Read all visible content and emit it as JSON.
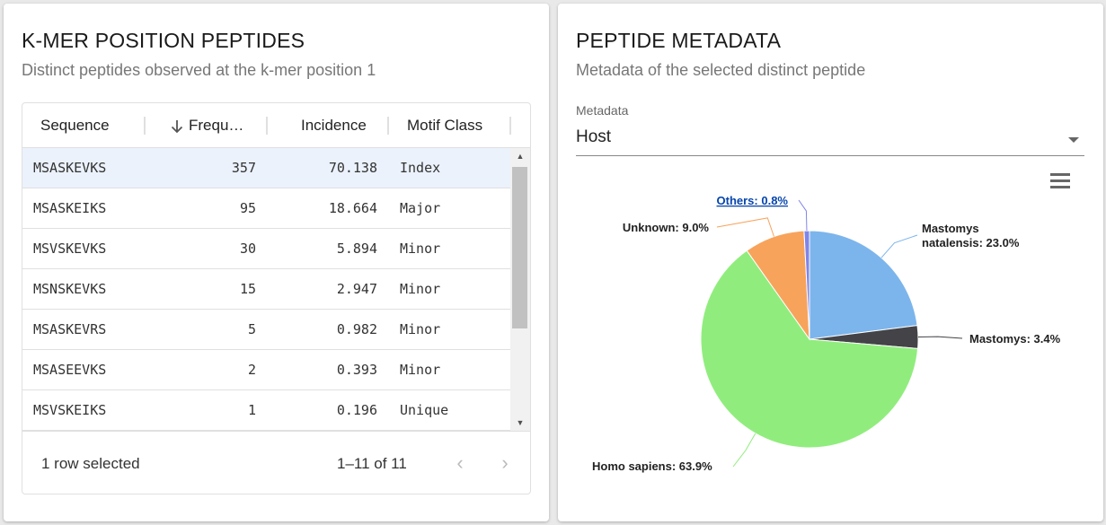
{
  "left_card": {
    "title": "K-MER POSITION PEPTIDES",
    "subtitle": "Distinct peptides observed at the k-mer position 1"
  },
  "grid": {
    "columns": {
      "sequence": "Sequence",
      "frequency": "Frequ…",
      "incidence": "Incidence",
      "motif": "Motif Class"
    },
    "sort_icon": "arrow-down-icon",
    "rows": [
      {
        "sequence": "MSASKEVKS",
        "frequency": "357",
        "incidence": "70.138",
        "motif": "Index",
        "selected": true
      },
      {
        "sequence": "MSASKEIKS",
        "frequency": "95",
        "incidence": "18.664",
        "motif": "Major",
        "selected": false
      },
      {
        "sequence": "MSVSKEVKS",
        "frequency": "30",
        "incidence": "5.894",
        "motif": "Minor",
        "selected": false
      },
      {
        "sequence": "MSNSKEVKS",
        "frequency": "15",
        "incidence": "2.947",
        "motif": "Minor",
        "selected": false
      },
      {
        "sequence": "MSASKEVRS",
        "frequency": "5",
        "incidence": "0.982",
        "motif": "Minor",
        "selected": false
      },
      {
        "sequence": "MSASEEVKS",
        "frequency": "2",
        "incidence": "0.393",
        "motif": "Minor",
        "selected": false
      },
      {
        "sequence": "MSVSKEIKS",
        "frequency": "1",
        "incidence": "0.196",
        "motif": "Unique",
        "selected": false
      }
    ],
    "footer": {
      "selection": "1 row selected",
      "range": "1–11 of 11"
    }
  },
  "right_card": {
    "title": "PEPTIDE METADATA",
    "subtitle": "Metadata of the selected distinct peptide",
    "select_label": "Metadata",
    "select_value": "Host",
    "menu_icon": "hamburger-menu-icon"
  },
  "chart_data": {
    "type": "pie",
    "slices": [
      {
        "name": "Mastomys natalensis",
        "value": 23.0,
        "color": "#7cb5ec"
      },
      {
        "name": "Mastomys",
        "value": 3.4,
        "color": "#434348"
      },
      {
        "name": "Homo sapiens",
        "value": 63.9,
        "color": "#90ed7d"
      },
      {
        "name": "Unknown",
        "value": 9.0,
        "color": "#f7a35c"
      },
      {
        "name": "Others",
        "value": 0.8,
        "color": "#8085e9"
      }
    ],
    "labels": [
      {
        "lines": [
          "Mastomys",
          "natalensis: 23.0%"
        ]
      },
      {
        "lines": [
          "Mastomys: 3.4%"
        ]
      },
      {
        "lines": [
          "Homo sapiens: 63.9%"
        ]
      },
      {
        "lines": [
          "Unknown: 9.0%"
        ]
      },
      {
        "lines": [
          "Others: 0.8%"
        ]
      }
    ]
  }
}
